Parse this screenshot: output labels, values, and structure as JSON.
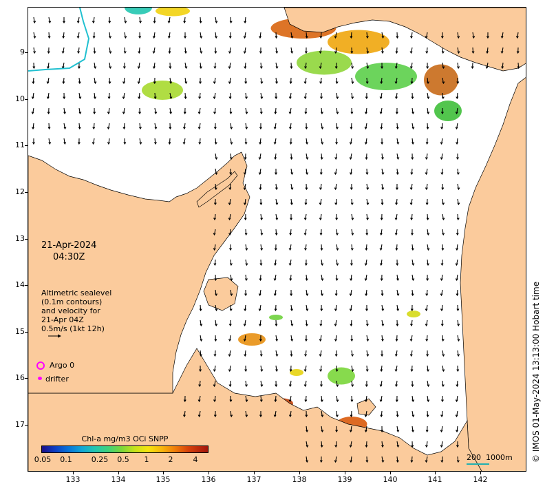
{
  "map": {
    "lat_ticks": [
      "9",
      "10",
      "11",
      "12",
      "13",
      "14",
      "15",
      "16",
      "17"
    ],
    "lon_ticks": [
      "133",
      "134",
      "135",
      "136",
      "137",
      "138",
      "139",
      "140",
      "141",
      "142"
    ],
    "lat_range": [
      -8.2,
      -17.7
    ],
    "lon_range": [
      132.0,
      143.0
    ]
  },
  "date": {
    "day": "21-Apr-2024",
    "time": "04:30Z"
  },
  "altimetry_note": [
    "Altimetric sealevel",
    "(0.1m contours)",
    "and velocity for",
    "21-Apr 04Z",
    "0.5m/s (1kt 12h)"
  ],
  "legend": {
    "argo": "Argo 0",
    "drifter": "drifter",
    "argo_color": "#ff00ff",
    "drifter_color": "#ff00ff"
  },
  "colorbar": {
    "title": "Chl-a mg/m3 OCi SNPP",
    "labels": [
      "0.05",
      "0.1",
      "0.25",
      "0.5",
      "1",
      "2",
      "4"
    ]
  },
  "scale_bar": {
    "label": "200  1000m",
    "color": "#20b0b0"
  },
  "copyright": "© IMOS 01-May-2024 13:13:00 Hobart time",
  "colors": {
    "land": "#fbcb9c",
    "ocean": "#ffffff",
    "coast": "#000000"
  }
}
